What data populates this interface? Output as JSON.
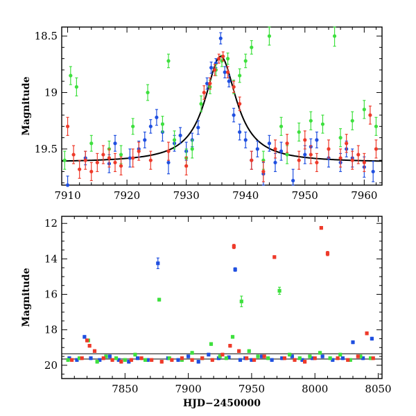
{
  "colors": {
    "blue": "#1f4fe0",
    "green": "#3ee03e",
    "red": "#ee3a2a",
    "fit": "#000000",
    "frame": "#000000"
  },
  "chart_data": [
    {
      "type": "scatter",
      "panel": "top",
      "title": "",
      "xlabel": "",
      "ylabel": "Magnitude",
      "xlim": [
        7909,
        7963
      ],
      "ylim": [
        19.82,
        18.42
      ],
      "y_inverted": true,
      "xticks": [
        "7910",
        "7920",
        "7930",
        "7940",
        "7950",
        "7960"
      ],
      "yticks": [
        "18.5",
        "19",
        "19.5"
      ],
      "fit_curve": {
        "type": "line",
        "peak_x": 7935.8,
        "peak_mag": 18.68,
        "baseline_mag": 19.62,
        "width_days": 3.2,
        "x": [
          7909,
          7915,
          7920,
          7925,
          7928,
          7930,
          7932,
          7933,
          7934,
          7935,
          7935.8,
          7937,
          7938,
          7940,
          7942,
          7945,
          7950,
          7955,
          7963
        ],
        "y": [
          19.61,
          19.6,
          19.58,
          19.52,
          19.45,
          19.37,
          19.22,
          19.09,
          18.93,
          18.76,
          18.68,
          18.86,
          19.04,
          19.25,
          19.37,
          19.48,
          19.56,
          19.59,
          19.61
        ]
      },
      "series": [
        {
          "color": "blue",
          "x": [
            7910,
            7913,
            7917,
            7918,
            7920.5,
            7922,
            7923,
            7924,
            7925,
            7926,
            7927,
            7928,
            7929,
            7930,
            7931,
            7932,
            7933.5,
            7934.2,
            7935,
            7935.8,
            7936.5,
            7937.2,
            7938,
            7939,
            7940,
            7941,
            7942,
            7943,
            7944,
            7945,
            7946,
            7948,
            7950,
            7951,
            7952,
            7954,
            7956,
            7957,
            7958,
            7960,
            7961.5
          ],
          "y": [
            19.82,
            19.58,
            19.63,
            19.45,
            19.58,
            19.5,
            19.42,
            19.3,
            19.22,
            19.35,
            19.62,
            19.45,
            19.38,
            19.52,
            19.42,
            19.31,
            18.92,
            18.78,
            18.74,
            18.52,
            18.82,
            18.9,
            19.2,
            19.35,
            19.42,
            19.6,
            19.5,
            19.72,
            19.45,
            19.62,
            19.52,
            19.78,
            19.55,
            19.48,
            19.42,
            19.58,
            19.62,
            19.5,
            19.58,
            19.66,
            19.7
          ],
          "err": [
            0.08,
            0.06,
            0.08,
            0.07,
            0.08,
            0.07,
            0.07,
            0.06,
            0.07,
            0.08,
            0.1,
            0.07,
            0.07,
            0.08,
            0.06,
            0.06,
            0.05,
            0.05,
            0.04,
            0.05,
            0.05,
            0.05,
            0.06,
            0.07,
            0.07,
            0.08,
            0.07,
            0.1,
            0.07,
            0.08,
            0.08,
            0.1,
            0.08,
            0.07,
            0.07,
            0.08,
            0.08,
            0.07,
            0.08,
            0.09,
            0.09
          ]
        },
        {
          "color": "green",
          "x": [
            7909.5,
            7910.5,
            7911.5,
            7914,
            7917,
            7919,
            7921,
            7923.5,
            7926,
            7927,
            7928,
            7930,
            7931,
            7932.5,
            7934,
            7935,
            7936,
            7937,
            7938,
            7939,
            7940,
            7941,
            7943,
            7944,
            7946,
            7947,
            7949,
            7951,
            7953,
            7955,
            7956,
            7958,
            7960,
            7962
          ],
          "y": [
            19.6,
            18.85,
            18.95,
            19.45,
            19.5,
            19.55,
            19.3,
            19.0,
            19.28,
            18.72,
            19.42,
            19.58,
            19.5,
            19.1,
            18.95,
            18.8,
            18.72,
            18.7,
            18.95,
            18.85,
            18.72,
            18.6,
            19.6,
            18.5,
            19.3,
            19.55,
            19.35,
            19.25,
            19.28,
            18.5,
            19.4,
            19.25,
            19.15,
            19.3
          ],
          "err": [
            0.08,
            0.08,
            0.08,
            0.07,
            0.07,
            0.08,
            0.07,
            0.07,
            0.07,
            0.06,
            0.08,
            0.08,
            0.08,
            0.07,
            0.06,
            0.05,
            0.05,
            0.05,
            0.06,
            0.06,
            0.06,
            0.06,
            0.08,
            0.08,
            0.08,
            0.08,
            0.08,
            0.08,
            0.08,
            0.09,
            0.08,
            0.08,
            0.08,
            0.08
          ]
        },
        {
          "color": "red",
          "x": [
            7910,
            7911,
            7912,
            7913,
            7914,
            7915,
            7916,
            7917,
            7918,
            7919,
            7921,
            7922,
            7924,
            7927,
            7930,
            7933,
            7934,
            7934.8,
            7935.5,
            7936.2,
            7937,
            7938,
            7939,
            7941,
            7943,
            7945,
            7947,
            7949,
            7950,
            7951,
            7952,
            7954,
            7956,
            7957,
            7958,
            7959,
            7960,
            7961,
            7962
          ],
          "y": [
            19.3,
            19.55,
            19.68,
            19.6,
            19.7,
            19.62,
            19.55,
            19.58,
            19.62,
            19.65,
            19.58,
            19.52,
            19.6,
            19.52,
            19.65,
            19.0,
            18.92,
            18.8,
            18.7,
            18.68,
            18.82,
            18.95,
            19.1,
            19.6,
            19.7,
            19.5,
            19.45,
            19.6,
            19.42,
            19.55,
            19.62,
            19.5,
            19.58,
            19.45,
            19.6,
            19.55,
            19.62,
            19.2,
            19.5
          ],
          "err": [
            0.08,
            0.08,
            0.08,
            0.08,
            0.08,
            0.08,
            0.08,
            0.08,
            0.08,
            0.08,
            0.08,
            0.08,
            0.08,
            0.08,
            0.08,
            0.06,
            0.05,
            0.05,
            0.04,
            0.04,
            0.05,
            0.05,
            0.06,
            0.08,
            0.09,
            0.08,
            0.08,
            0.08,
            0.08,
            0.08,
            0.08,
            0.08,
            0.08,
            0.08,
            0.08,
            0.08,
            0.08,
            0.08,
            0.08
          ]
        }
      ]
    },
    {
      "type": "scatter",
      "panel": "bottom",
      "title": "",
      "xlabel": "HJD−2450000",
      "ylabel": "Magnitude",
      "xlim": [
        7800,
        8053
      ],
      "ylim": [
        20.75,
        11.6
      ],
      "y_inverted": true,
      "xticks": [
        "7850",
        "7900",
        "7950",
        "8000",
        "8050"
      ],
      "yticks": [
        "12",
        "14",
        "16",
        "18",
        "20"
      ],
      "reference_lines": [
        19.35,
        19.65
      ],
      "series": [
        {
          "color": "blue",
          "x": [
            7806,
            7812,
            7818,
            7823,
            7830,
            7838,
            7845,
            7853,
            7860,
            7868,
            7876,
            7884,
            7892,
            7900,
            7908,
            7916,
            7924,
            7932,
            7937,
            7941,
            7945,
            7950,
            7958,
            7966,
            7974,
            7982,
            7990,
            7998,
            8006,
            8014,
            8022,
            8030,
            8038,
            8045
          ],
          "y": [
            19.6,
            19.7,
            18.4,
            19.6,
            19.7,
            19.5,
            19.7,
            19.8,
            19.6,
            19.7,
            14.25,
            19.6,
            19.7,
            19.5,
            19.8,
            19.4,
            19.6,
            19.55,
            14.6,
            19.7,
            19.6,
            19.7,
            19.5,
            19.7,
            19.6,
            19.5,
            19.7,
            19.6,
            19.5,
            19.7,
            19.6,
            18.7,
            19.6,
            18.5
          ],
          "err": [
            0.08,
            0.08,
            0.08,
            0.08,
            0.08,
            0.08,
            0.08,
            0.08,
            0.08,
            0.08,
            0.3,
            0.08,
            0.08,
            0.08,
            0.08,
            0.08,
            0.08,
            0.08,
            0.1,
            0.08,
            0.08,
            0.08,
            0.08,
            0.08,
            0.08,
            0.08,
            0.08,
            0.08,
            0.08,
            0.08,
            0.08,
            0.08,
            0.08,
            0.08
          ]
        },
        {
          "color": "green",
          "x": [
            7805,
            7814,
            7821,
            7828,
            7835,
            7843,
            7850,
            7858,
            7866,
            7877,
            7885,
            7895,
            7903,
            7911,
            7918,
            7925,
            7930,
            7935,
            7942,
            7948,
            7955,
            7963,
            7972,
            7980,
            7988,
            7996,
            8004,
            8012,
            8020,
            8028,
            8036,
            8044
          ],
          "y": [
            19.7,
            19.6,
            18.6,
            19.8,
            19.5,
            19.6,
            19.7,
            19.4,
            19.7,
            16.3,
            19.6,
            19.7,
            19.3,
            19.6,
            18.8,
            19.5,
            19.6,
            18.4,
            16.4,
            19.2,
            19.5,
            19.6,
            15.8,
            19.4,
            19.6,
            19.5,
            19.3,
            19.6,
            19.4,
            19.7,
            19.5,
            19.6
          ],
          "err": [
            0.08,
            0.08,
            0.08,
            0.08,
            0.08,
            0.08,
            0.08,
            0.08,
            0.08,
            0.08,
            0.08,
            0.08,
            0.08,
            0.08,
            0.08,
            0.08,
            0.08,
            0.08,
            0.3,
            0.08,
            0.08,
            0.08,
            0.2,
            0.08,
            0.08,
            0.08,
            0.08,
            0.08,
            0.08,
            0.08,
            0.08,
            0.08
          ]
        },
        {
          "color": "red",
          "x": [
            7808,
            7816,
            7820,
            7822,
            7826,
            7833,
            7840,
            7847,
            7855,
            7863,
            7871,
            7879,
            7887,
            7895,
            7903,
            7911,
            7919,
            7927,
            7933,
            7936,
            7940,
            7946,
            7952,
            7960,
            7968,
            7976,
            7984,
            7992,
            8000,
            8005,
            8010,
            8018,
            8026,
            8034,
            8041,
            8046
          ],
          "y": [
            19.7,
            19.6,
            18.6,
            18.9,
            19.2,
            19.6,
            19.7,
            19.8,
            19.7,
            19.6,
            19.7,
            19.8,
            19.7,
            19.6,
            19.7,
            19.6,
            19.7,
            19.4,
            18.9,
            13.3,
            19.2,
            19.6,
            19.7,
            19.5,
            13.9,
            19.6,
            19.7,
            19.8,
            19.6,
            12.25,
            13.7,
            19.6,
            19.7,
            19.5,
            18.2,
            19.6
          ],
          "err": [
            0.08,
            0.08,
            0.08,
            0.08,
            0.08,
            0.08,
            0.08,
            0.08,
            0.08,
            0.08,
            0.08,
            0.08,
            0.08,
            0.08,
            0.08,
            0.08,
            0.08,
            0.08,
            0.08,
            0.12,
            0.08,
            0.08,
            0.08,
            0.08,
            0.08,
            0.08,
            0.08,
            0.08,
            0.08,
            0.08,
            0.12,
            0.08,
            0.08,
            0.08,
            0.08,
            0.08
          ]
        }
      ]
    }
  ]
}
